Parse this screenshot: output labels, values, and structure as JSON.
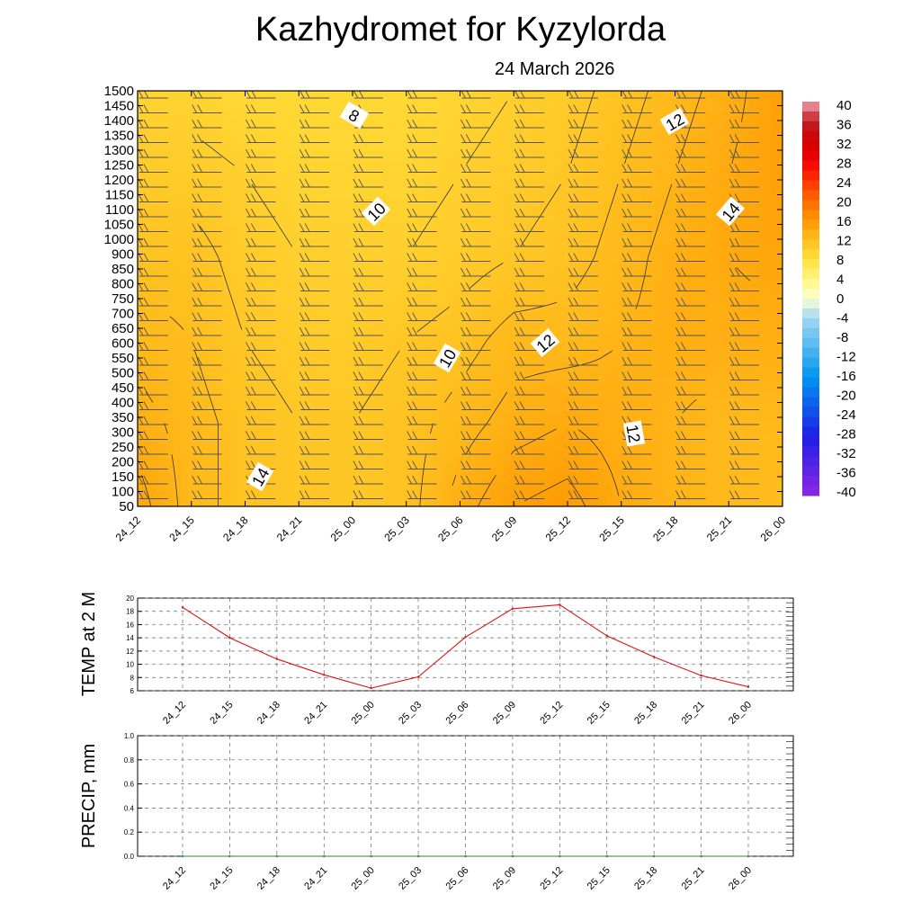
{
  "header": {
    "title": "Kazhydromet  for Kyzylorda",
    "date": "24 March 2026"
  },
  "chart_data": [
    {
      "type": "heatmap",
      "name": "temperature-height-section",
      "ylabel": "",
      "y_levels": [
        50,
        100,
        150,
        200,
        250,
        300,
        350,
        400,
        450,
        500,
        550,
        600,
        650,
        700,
        750,
        800,
        850,
        900,
        1000,
        1050,
        1100,
        1150,
        1200,
        1250,
        1300,
        1350,
        1400,
        1450,
        1500
      ],
      "x_ticks": [
        "24_12",
        "24_15",
        "24_18",
        "24_21",
        "25_00",
        "25_03",
        "25_06",
        "25_09",
        "25_12",
        "25_15",
        "25_18",
        "25_21",
        "26_00"
      ],
      "temperature_grid_bottom_to_top": [
        [
          14.5,
          12.5,
          11.5,
          11.0,
          11.0,
          11.5,
          13.5,
          15.0,
          15.5,
          14.0,
          13.0,
          12.5,
          12.0
        ],
        [
          13.5,
          12.5,
          11.5,
          11.0,
          11.0,
          11.5,
          12.5,
          13.5,
          14.0,
          13.5,
          13.0,
          12.5,
          12.5
        ],
        [
          12.5,
          12.0,
          11.0,
          10.5,
          10.5,
          11.0,
          11.5,
          12.5,
          12.5,
          13.0,
          13.5,
          13.5,
          13.5
        ],
        [
          11.5,
          11.5,
          10.5,
          10.0,
          10.0,
          10.0,
          10.5,
          11.0,
          11.5,
          12.5,
          13.5,
          14.0,
          14.5
        ],
        [
          10.5,
          10.5,
          10.0,
          9.5,
          9.5,
          9.5,
          10.0,
          10.5,
          11.0,
          12.0,
          13.0,
          14.0,
          15.0
        ],
        [
          9.5,
          9.5,
          9.0,
          9.0,
          9.0,
          9.0,
          9.5,
          10.0,
          10.5,
          11.5,
          12.5,
          13.5,
          15.0
        ]
      ],
      "contour_labels": [
        "8",
        "10",
        "12",
        "14",
        "10",
        "12",
        "12",
        "14"
      ],
      "colorbar": {
        "labels": [
          "40",
          "36",
          "32",
          "28",
          "24",
          "20",
          "16",
          "12",
          "8",
          "4",
          "0",
          "-4",
          "-8",
          "-12",
          "-16",
          "-20",
          "-24",
          "-28",
          "-32",
          "-36",
          "-40"
        ],
        "range": [
          -40,
          40
        ]
      }
    },
    {
      "type": "line",
      "name": "temp-2m",
      "ylabel": "TEMP at 2 M",
      "categories": [
        "24_12",
        "24_15",
        "24_18",
        "24_21",
        "25_00",
        "25_03",
        "25_06",
        "25_09",
        "25_12",
        "25_15",
        "25_18",
        "25_21",
        "26_00"
      ],
      "values": [
        18.6,
        14.0,
        10.8,
        8.4,
        6.4,
        8.1,
        14.1,
        18.4,
        19.0,
        14.3,
        11.1,
        8.3,
        6.6
      ],
      "y_ticks": [
        "20",
        "18",
        "16",
        "14",
        "12",
        "10",
        "8",
        "6"
      ],
      "ylim": [
        6,
        20
      ],
      "series_color": "#e01010"
    },
    {
      "type": "line",
      "name": "precip",
      "ylabel": "PRECIP, mm",
      "categories": [
        "24_12",
        "24_15",
        "24_18",
        "24_21",
        "25_00",
        "25_03",
        "25_06",
        "25_09",
        "25_12",
        "25_15",
        "25_18",
        "25_21",
        "26_00"
      ],
      "values": [
        0,
        0,
        0,
        0,
        0,
        0,
        0,
        0,
        0,
        0,
        0,
        0,
        0
      ],
      "y_ticks": [
        "1.0",
        "0.8",
        "0.6",
        "0.4",
        "0.2",
        "0.0"
      ],
      "ylim": [
        0,
        1
      ],
      "series_color": "#2e8b2e"
    }
  ]
}
